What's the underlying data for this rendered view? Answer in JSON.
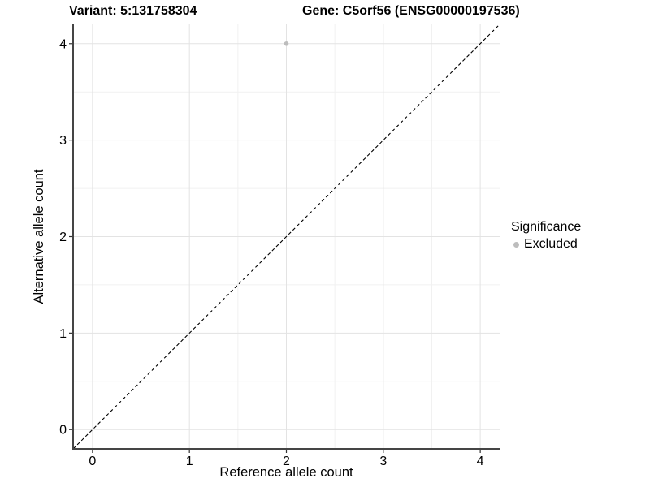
{
  "titles": {
    "variant": "Variant: 5:131758304",
    "gene": "Gene: C5orf56 (ENSG00000197536)"
  },
  "chart_data": {
    "type": "scatter",
    "title_left": "Variant: 5:131758304",
    "title_right": "Gene: C5orf56 (ENSG00000197536)",
    "xlabel": "Reference allele count",
    "ylabel": "Alternative allele count",
    "xlim": [
      -0.2,
      4.2
    ],
    "ylim": [
      -0.2,
      4.2
    ],
    "xticks": [
      0,
      1,
      2,
      3,
      4
    ],
    "yticks": [
      0,
      1,
      2,
      3,
      4
    ],
    "grid": {
      "major": true,
      "minor": true
    },
    "identity_line": {
      "style": "dashed",
      "from": [
        -0.2,
        -0.2
      ],
      "to": [
        4.2,
        4.2
      ]
    },
    "series": [
      {
        "name": "Excluded",
        "color": "#bdbdbd",
        "points": [
          {
            "x": 2,
            "y": 4
          }
        ]
      }
    ],
    "legend": {
      "title": "Significance",
      "position": "right",
      "items": [
        {
          "label": "Excluded",
          "color": "#bdbdbd"
        }
      ]
    }
  },
  "colors": {
    "background": "#ffffff",
    "grid_major": "#e3e3e3",
    "grid_minor": "#f1f1f1",
    "axis_line": "#454545",
    "tick_mark": "#333333",
    "tick_label": "#000000",
    "identity_line": "#000000",
    "point": "#bdbdbd"
  }
}
